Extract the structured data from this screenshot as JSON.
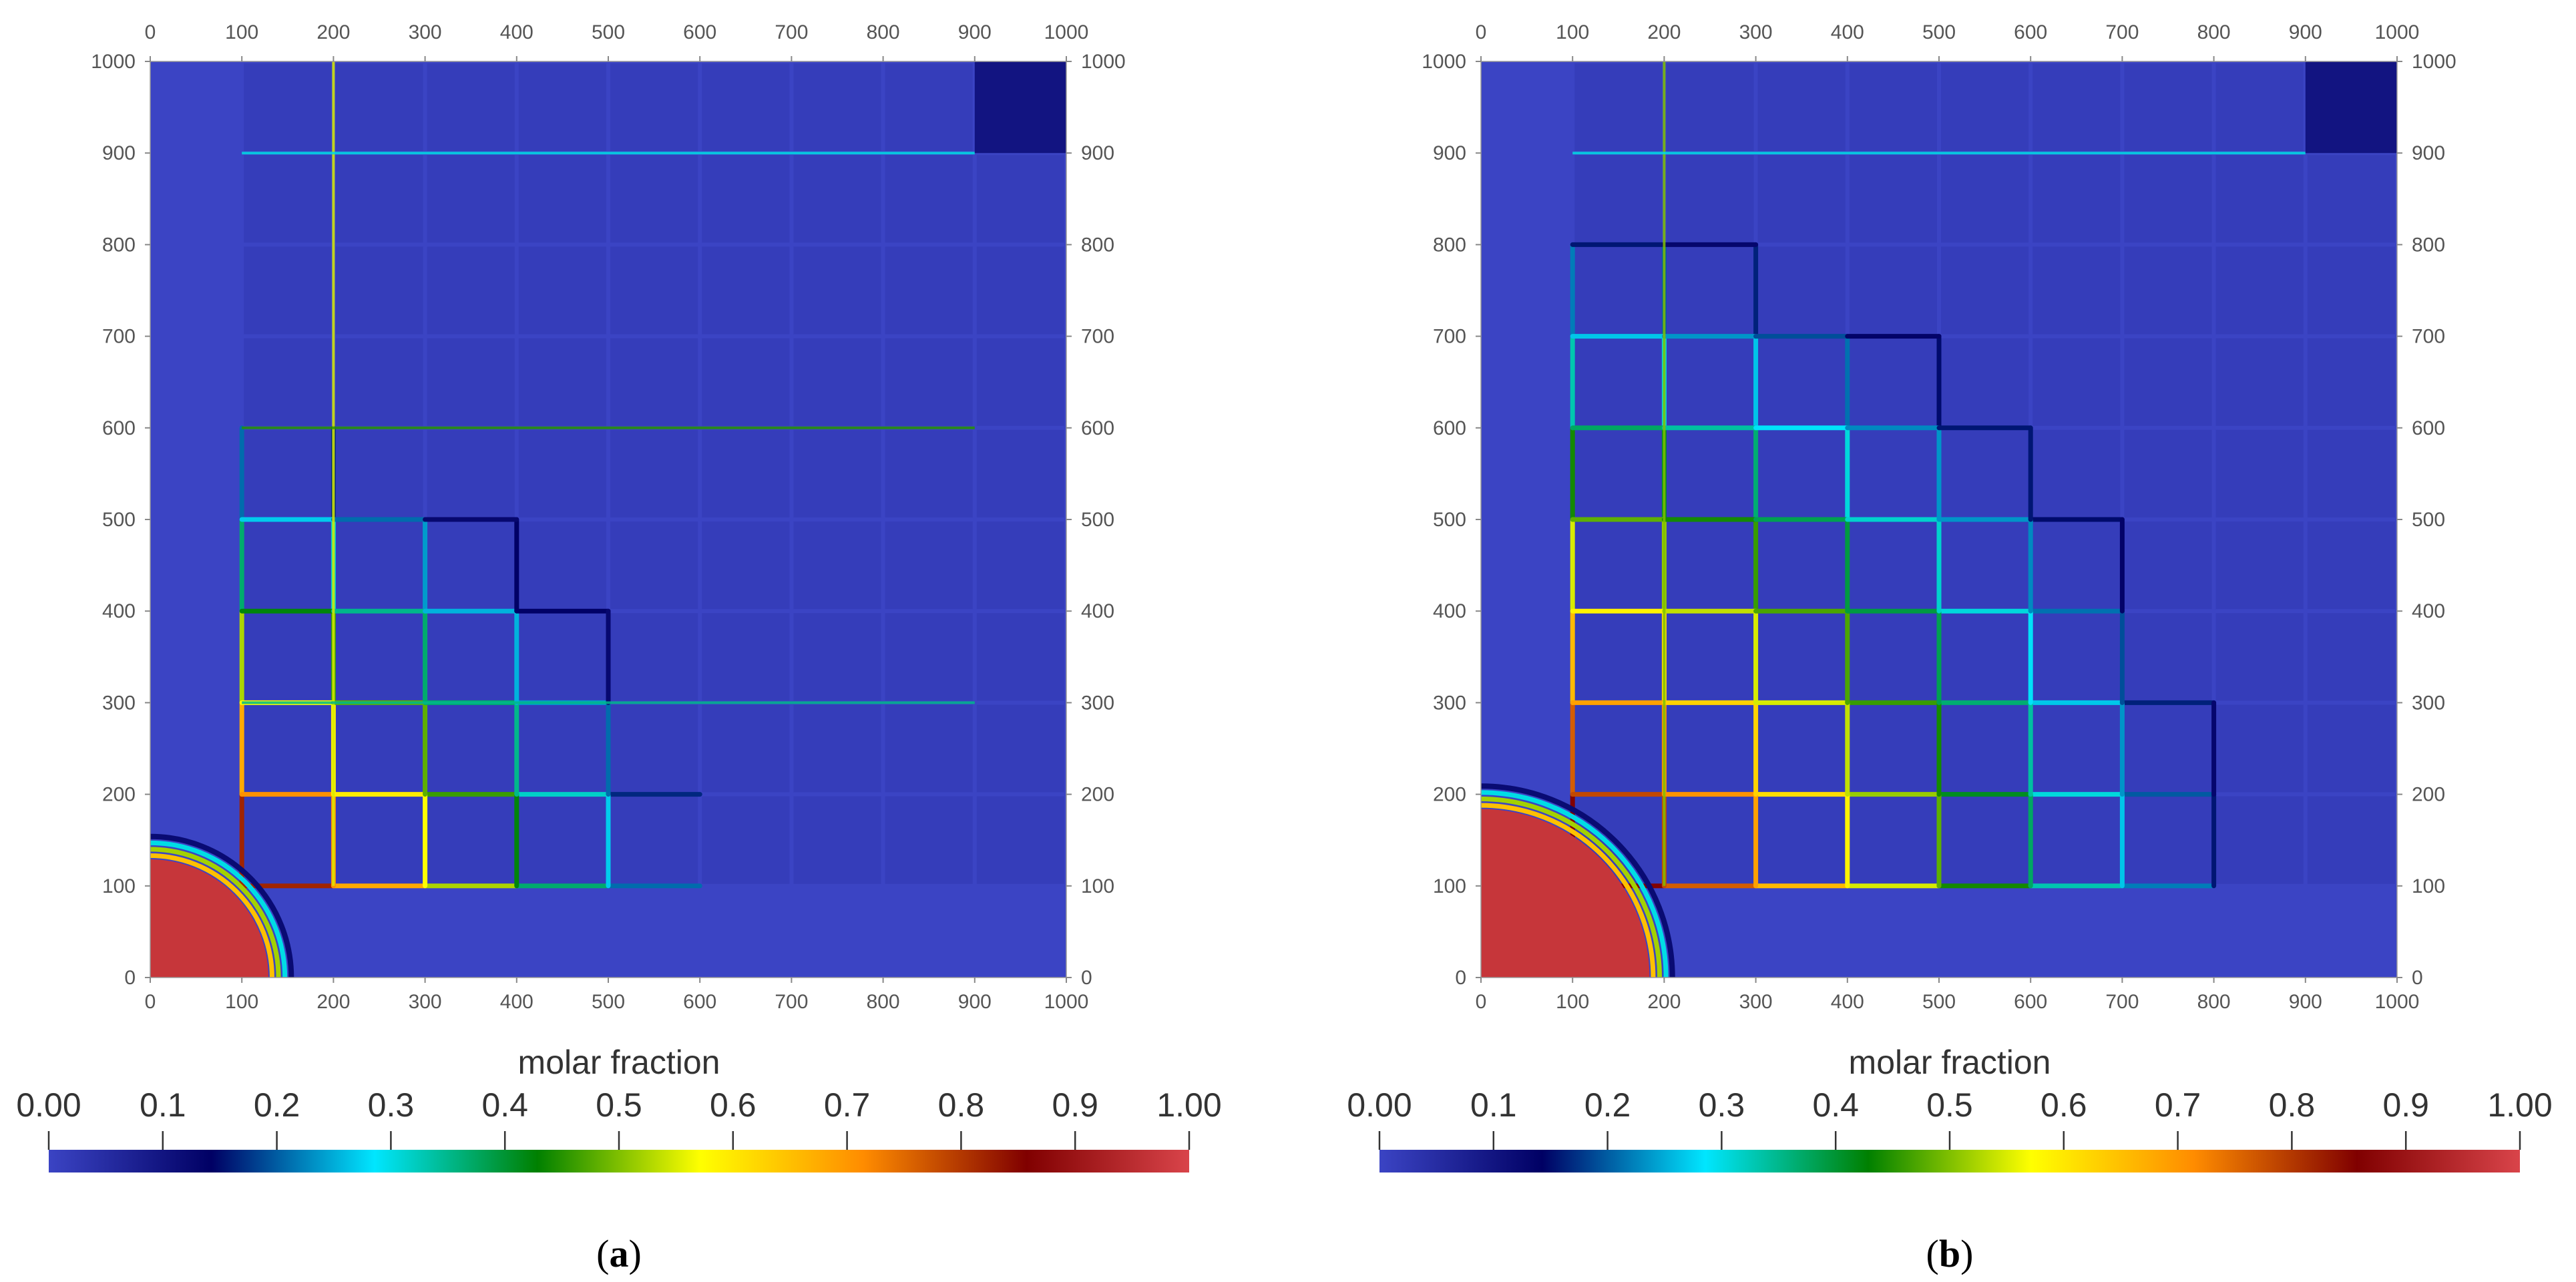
{
  "chart_data": [
    {
      "type": "heatmap",
      "panel_label": "(a)",
      "panel_letter": "a",
      "x_ticks": [
        "0",
        "100",
        "200",
        "300",
        "400",
        "500",
        "600",
        "700",
        "800",
        "900",
        "1000"
      ],
      "y_ticks": [
        "0",
        "100",
        "200",
        "300",
        "400",
        "500",
        "600",
        "700",
        "800",
        "900",
        "1000"
      ],
      "xlim": [
        0,
        1000
      ],
      "ylim": [
        0,
        1000
      ],
      "colorbar": {
        "title": "molar fraction",
        "ticks": [
          "0.00",
          "0.1",
          "0.2",
          "0.3",
          "0.4",
          "0.5",
          "0.6",
          "0.7",
          "0.8",
          "0.9",
          "1.00"
        ],
        "range": [
          0,
          1
        ]
      },
      "front_radius": 140,
      "fractures": [
        {
          "orientation": "vertical",
          "at": 200,
          "from": 100,
          "to": 1000,
          "value": 0.55
        },
        {
          "orientation": "horizontal",
          "at": 900,
          "from": 100,
          "to": 900,
          "value": 0.3
        },
        {
          "orientation": "horizontal",
          "at": 600,
          "from": 100,
          "to": 900,
          "value": 0.45
        },
        {
          "orientation": "horizontal",
          "at": 300,
          "from": 100,
          "to": 900,
          "value": 0.35
        }
      ]
    },
    {
      "type": "heatmap",
      "panel_label": "(b)",
      "panel_letter": "b",
      "x_ticks": [
        "0",
        "100",
        "200",
        "300",
        "400",
        "500",
        "600",
        "700",
        "800",
        "900",
        "1000"
      ],
      "y_ticks": [
        "0",
        "100",
        "200",
        "300",
        "400",
        "500",
        "600",
        "700",
        "800",
        "900",
        "1000"
      ],
      "xlim": [
        0,
        1000
      ],
      "ylim": [
        0,
        1000
      ],
      "colorbar": {
        "title": "molar fraction",
        "ticks": [
          "0.00",
          "0.1",
          "0.2",
          "0.3",
          "0.4",
          "0.5",
          "0.6",
          "0.7",
          "0.8",
          "0.9",
          "1.00"
        ],
        "range": [
          0,
          1
        ]
      },
      "front_radius": 195,
      "fractures": [
        {
          "orientation": "vertical",
          "at": 200,
          "from": 100,
          "to": 1000,
          "value": 0.5
        },
        {
          "orientation": "horizontal",
          "at": 900,
          "from": 100,
          "to": 900,
          "value": 0.3
        }
      ]
    }
  ],
  "colormap": [
    "#3b44c4",
    "#000064",
    "#00e6ff",
    "#008000",
    "#ffff00",
    "#ff8c00",
    "#800000",
    "#d9444a"
  ]
}
